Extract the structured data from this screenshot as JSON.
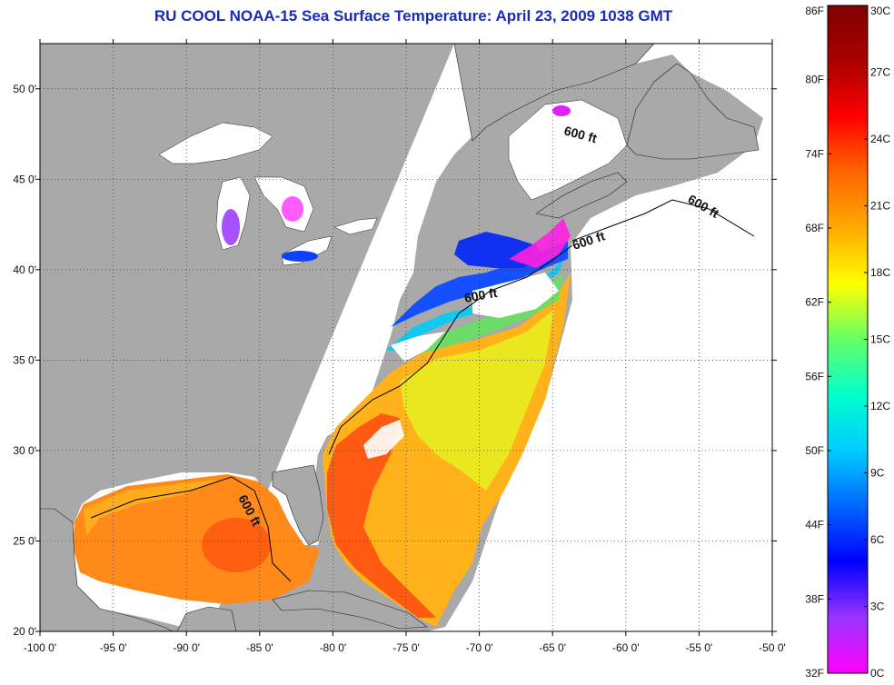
{
  "title": "RU COOL  NOAA-15  Sea Surface Temperature:  April 23, 2009 1038 GMT",
  "map": {
    "lon_range": [
      -100,
      -50
    ],
    "lat_range": [
      20,
      52.5
    ],
    "lon_ticks": [
      "-100 0'",
      "-95 0'",
      "-90 0'",
      "-85 0'",
      "-80 0'",
      "-75 0'",
      "-70 0'",
      "-65 0'",
      "-60 0'",
      "-55 0'",
      "-50 0'"
    ],
    "lat_ticks": [
      "20 0'",
      "25 0'",
      "30 0'",
      "35 0'",
      "40 0'",
      "45 0'",
      "50 0'"
    ],
    "isobath_label": "600 ft",
    "grid": "dotted",
    "colors": {
      "land": "#a9a9a9",
      "no_data": "#ffffff",
      "frame": "#000000"
    }
  },
  "colorbar": {
    "units_left": [
      "86F",
      "80F",
      "74F",
      "68F",
      "62F",
      "56F",
      "50F",
      "44F",
      "38F",
      "32F"
    ],
    "units_right": [
      "30C",
      "27C",
      "24C",
      "21C",
      "18C",
      "15C",
      "12C",
      "9C",
      "6C",
      "3C",
      "0C"
    ],
    "f_range": [
      32,
      86
    ],
    "c_range": [
      0,
      30
    ],
    "colors": [
      "#ff00ff",
      "#9933ff",
      "#0000ff",
      "#0066ff",
      "#00ccff",
      "#00ffcc",
      "#66ff66",
      "#ffff00",
      "#ffaa00",
      "#ff6600",
      "#ff0000",
      "#aa0000",
      "#800000"
    ]
  }
}
